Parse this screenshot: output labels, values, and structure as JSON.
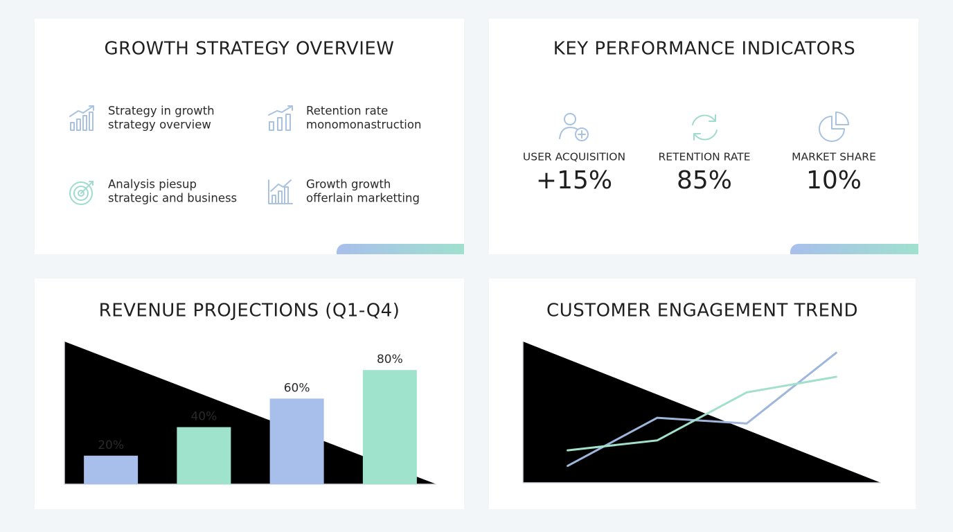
{
  "strategy": {
    "title": "GROWTH STRATEGY OVERVIEW",
    "items": [
      [
        "Strategy in growth",
        "strategy overview"
      ],
      [
        "Retention rate",
        "monomonastruction"
      ],
      [
        "Analysis piesup",
        "strategic and business"
      ],
      [
        "Growth growth",
        "offerlain marketting"
      ]
    ]
  },
  "kpi": {
    "title": "KEY PERFORMANCE INDICATORS",
    "items": [
      {
        "label": "USER ACQUISITION",
        "value": "+15%"
      },
      {
        "label": "RETENTION RATE",
        "value": "85%"
      },
      {
        "label": "MARKET SHARE",
        "value": "10%"
      }
    ]
  },
  "chart_data": [
    {
      "type": "bar",
      "title": "REVENUE PROJECTIONS (Q1-Q4)",
      "categories": [
        null,
        null,
        null,
        null
      ],
      "values": [
        20,
        40,
        60,
        80
      ],
      "value_labels": [
        "20%",
        "40%",
        "60%",
        "80%"
      ],
      "colors": [
        "#a8bfec",
        "#9fe3cc",
        "#a8bfec",
        "#9fe3cc"
      ],
      "ylim": [
        0,
        100
      ]
    },
    {
      "type": "line",
      "title": "CUSTOMER ENGAGEMENT TREND",
      "categories": [
        null,
        null,
        null,
        null
      ],
      "series": [
        {
          "color": "#9fb6dc",
          "values": [
            12,
            46,
            42,
            92
          ]
        },
        {
          "color": "#a2e0cb",
          "values": [
            23,
            30,
            64,
            75
          ]
        }
      ],
      "ylim": [
        0,
        100
      ]
    }
  ]
}
